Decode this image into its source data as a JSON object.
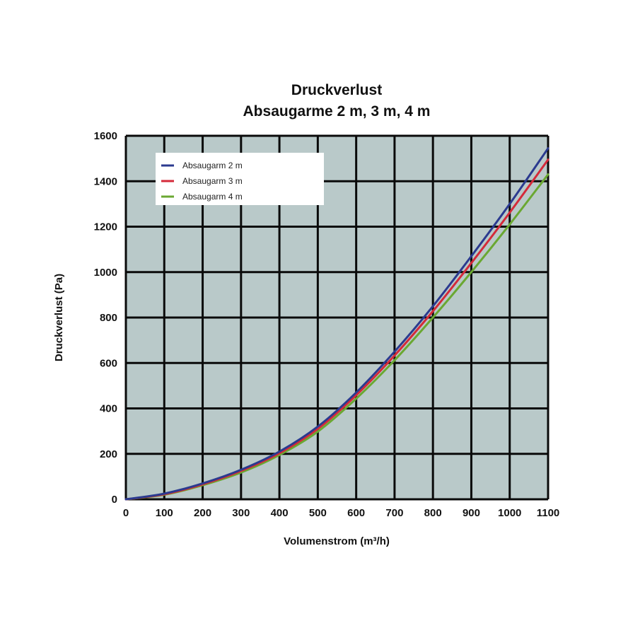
{
  "chart_data": {
    "type": "line",
    "title": "Druckverlust",
    "subtitle": "Absaugarme 2 m, 3 m, 4 m",
    "xlabel": "Volumenstrom (m³/h)",
    "ylabel": "Druckverlust (Pa)",
    "xlim": [
      0,
      1100
    ],
    "ylim": [
      0,
      1600
    ],
    "xticks": [
      0,
      100,
      200,
      300,
      400,
      500,
      600,
      700,
      800,
      900,
      1000,
      1100
    ],
    "yticks": [
      0,
      200,
      400,
      600,
      800,
      1000,
      1200,
      1400,
      1600
    ],
    "grid": true,
    "legend": "top-left",
    "plot_background": "#b9c9c9",
    "x": [
      0,
      100,
      200,
      300,
      400,
      500,
      600,
      700,
      800,
      900,
      1000,
      1100
    ],
    "series": [
      {
        "name": "Absaugarm 2 m",
        "color": "#2b3a8f",
        "values": [
          0,
          25,
          70,
          130,
          210,
          320,
          470,
          650,
          850,
          1070,
          1300,
          1545
        ]
      },
      {
        "name": "Absaugarm 3 m",
        "color": "#d42a3a",
        "values": [
          0,
          22,
          66,
          125,
          203,
          310,
          458,
          633,
          828,
          1040,
          1262,
          1495
        ]
      },
      {
        "name": "Absaugarm 4 m",
        "color": "#6aa832",
        "values": [
          0,
          20,
          62,
          118,
          195,
          298,
          443,
          612,
          800,
          1000,
          1210,
          1430
        ]
      }
    ]
  }
}
